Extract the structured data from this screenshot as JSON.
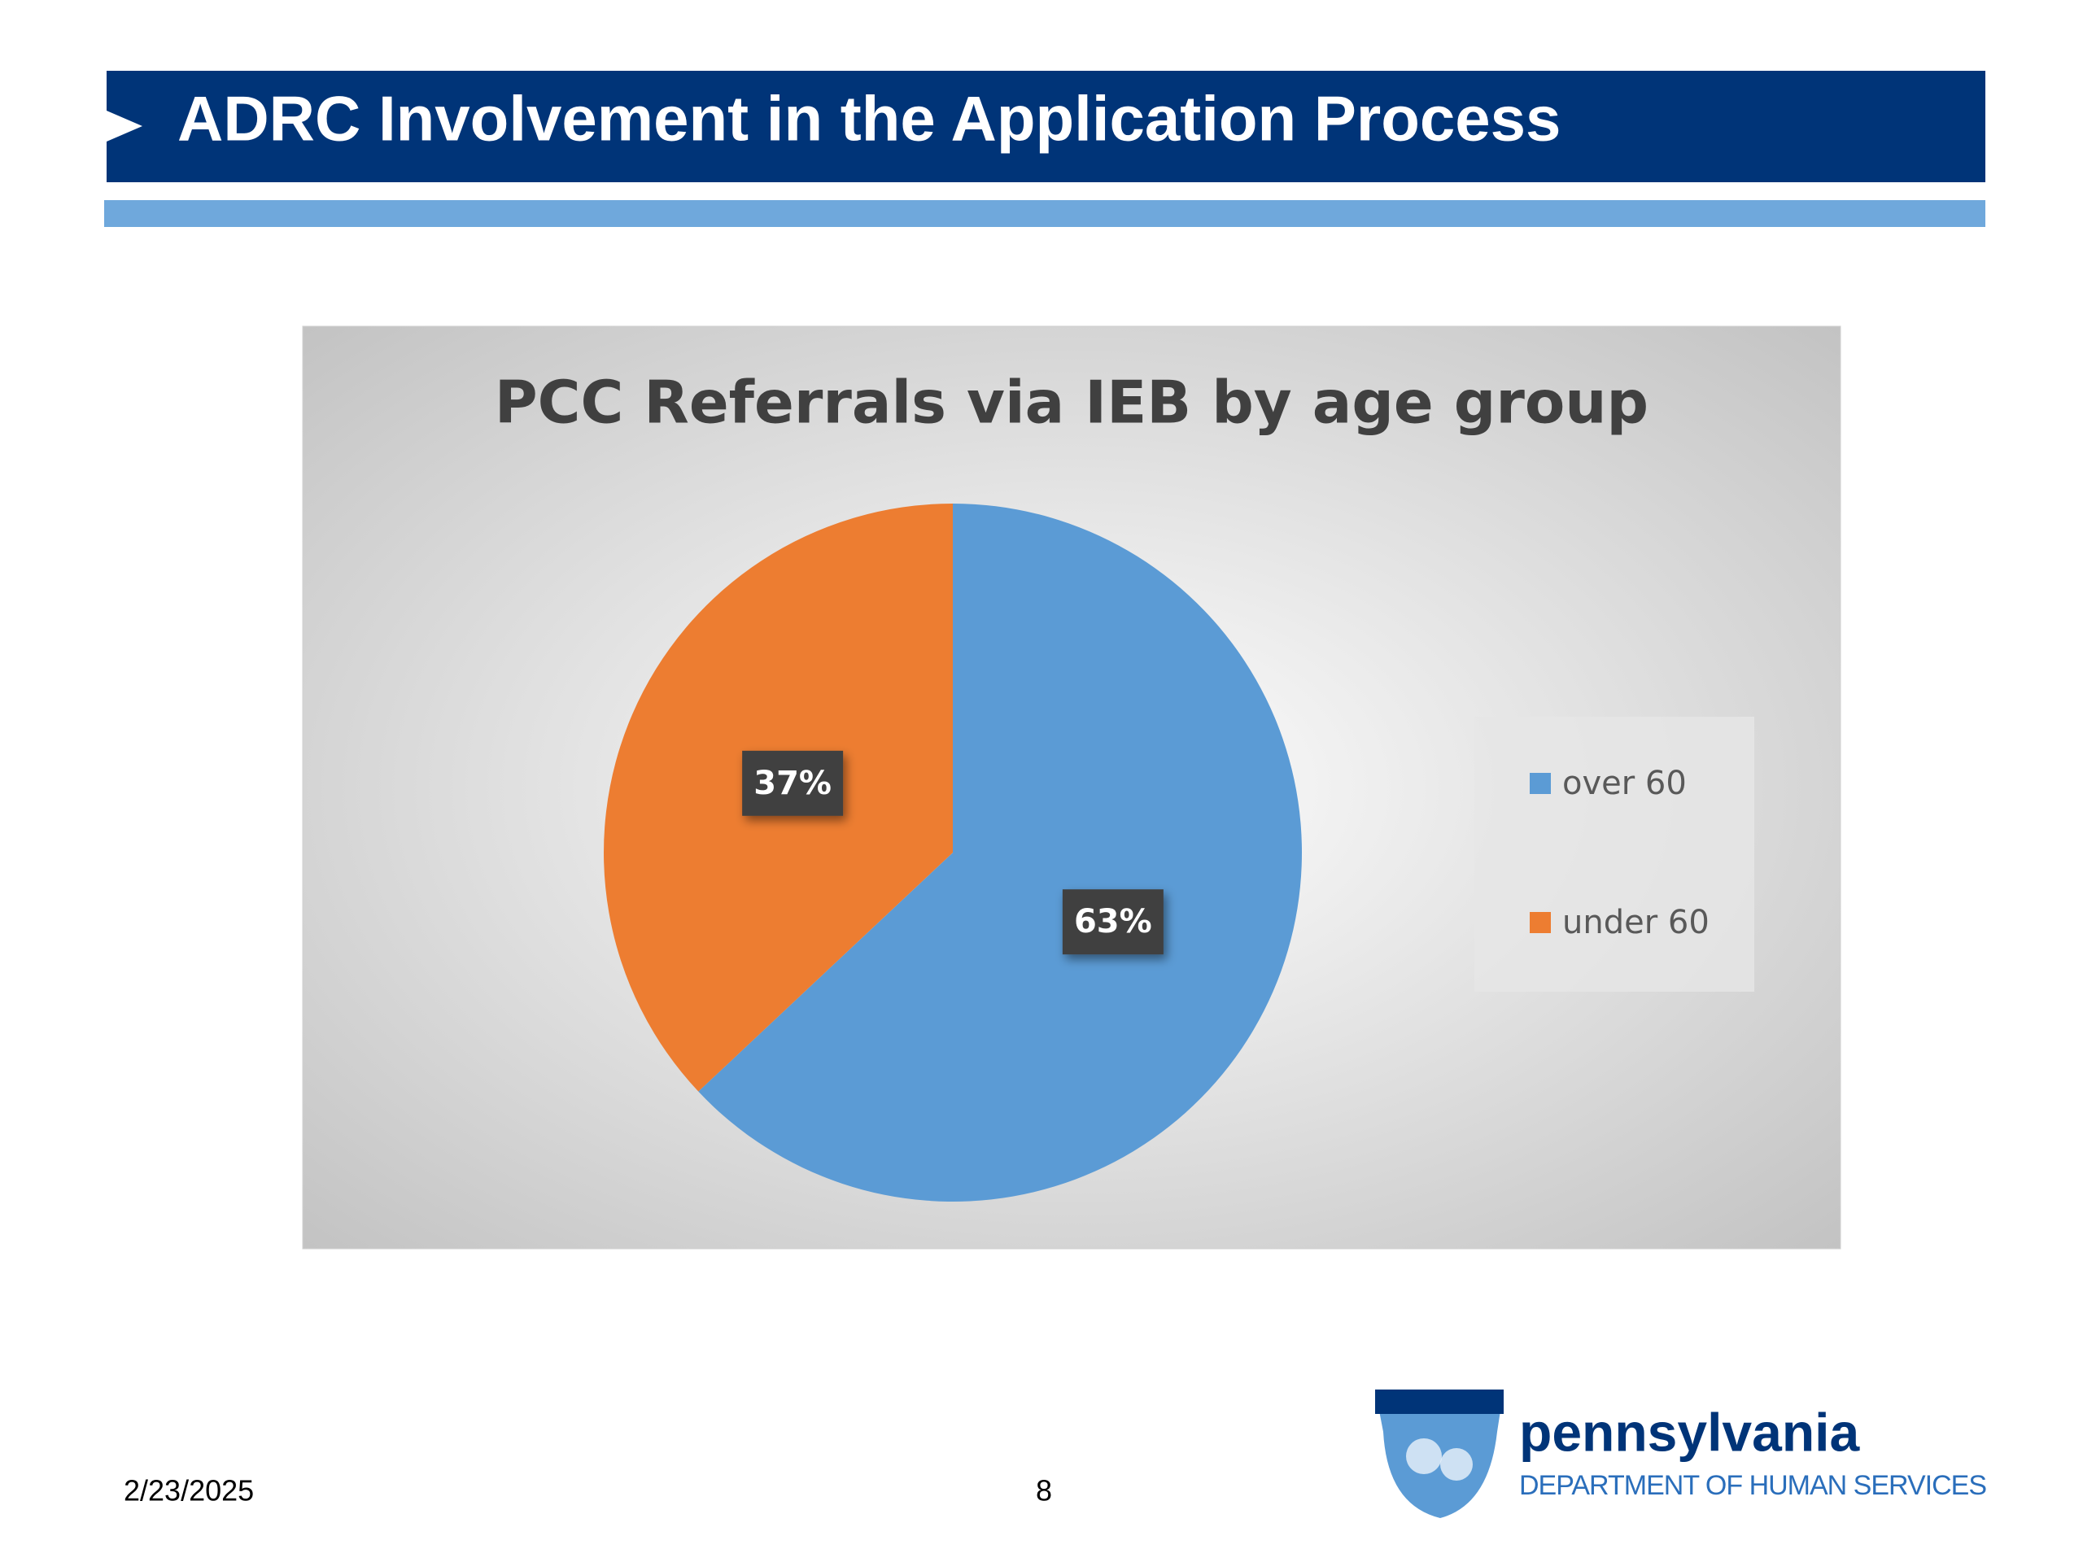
{
  "slide": {
    "title": "ADRC Involvement in the Application Process"
  },
  "chart_data": {
    "type": "pie",
    "title": "PCC Referrals via IEB by age group",
    "categories": [
      "over 60",
      "under 60"
    ],
    "values": [
      63,
      37
    ],
    "value_labels": [
      "63%",
      "37%"
    ],
    "colors": [
      "#5b9bd5",
      "#ed7d31"
    ],
    "legend": "right"
  },
  "footer": {
    "date": "2/23/2025",
    "page": 8
  },
  "logo": {
    "name": "pennsylvania",
    "department": "DEPARTMENT OF HUMAN SERVICES"
  }
}
